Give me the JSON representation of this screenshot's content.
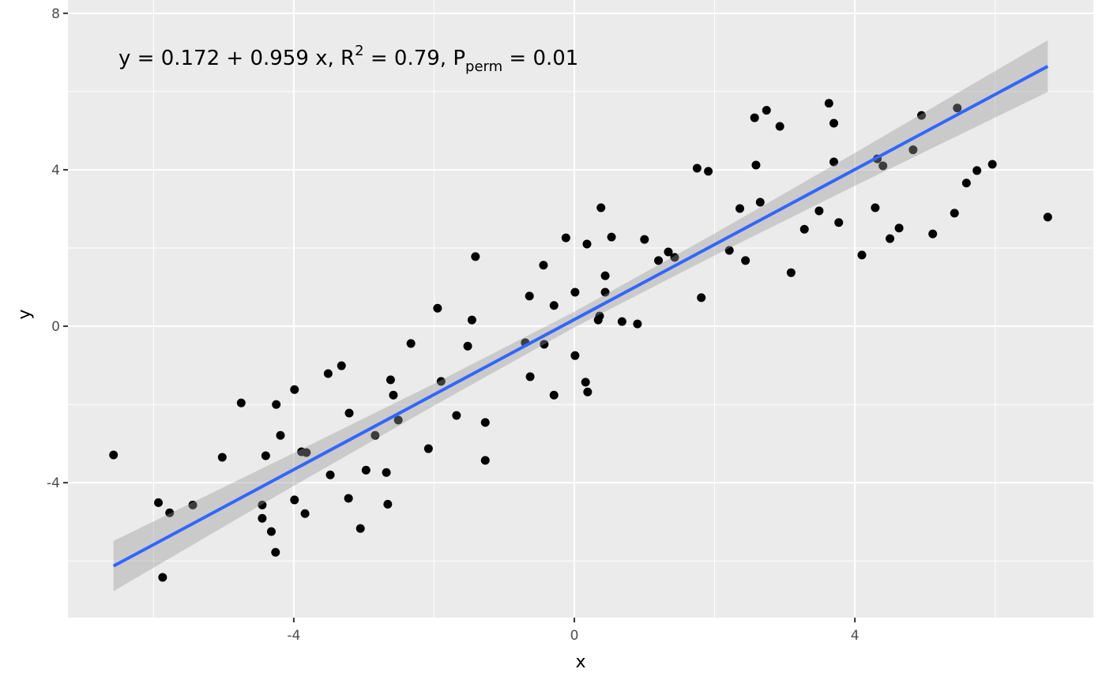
{
  "chart_data": {
    "type": "scatter",
    "xlabel": "x",
    "ylabel": "y",
    "annotation": [
      "y = 0.172 + 0.959 x, R",
      "2",
      " = 0.79, P",
      "perm",
      " = 0.01"
    ],
    "xlim": [
      -7.22,
      7.4
    ],
    "ylim": [
      -7.45,
      8.34
    ],
    "xticks": [
      -4,
      0,
      4
    ],
    "yticks": [
      -4,
      0,
      4,
      8
    ],
    "xminor": [
      -6,
      -2,
      2,
      6
    ],
    "yminor": [
      -6,
      -2,
      2,
      6
    ],
    "grid": true,
    "point_color": "#000000",
    "line_color": "#3366ff",
    "band_color": "#999999",
    "x": [
      -6.57,
      -5.93,
      -5.87,
      -5.77,
      -5.44,
      -5.02,
      -4.75,
      -4.45,
      -4.45,
      -4.4,
      -4.32,
      -4.26,
      -4.25,
      -4.19,
      -3.99,
      -3.99,
      -3.89,
      -3.82,
      -3.84,
      -3.51,
      -3.48,
      -3.32,
      -3.22,
      -3.21,
      -3.05,
      -2.97,
      -2.84,
      -2.68,
      -2.66,
      -2.62,
      -2.58,
      -2.51,
      -2.33,
      -2.08,
      -1.95,
      -1.9,
      -1.68,
      -1.52,
      -1.46,
      -1.41,
      -1.27,
      -1.27,
      -0.7,
      -0.64,
      -0.63,
      -0.44,
      -0.43,
      -0.29,
      -0.29,
      -0.12,
      0.01,
      0.01,
      0.16,
      0.18,
      0.19,
      0.34,
      0.36,
      0.38,
      0.44,
      0.44,
      0.53,
      0.68,
      0.9,
      1.0,
      1.2,
      1.34,
      1.43,
      1.75,
      1.81,
      1.91,
      2.21,
      2.36,
      2.44,
      2.57,
      2.59,
      2.65,
      2.74,
      2.93,
      3.09,
      3.28,
      3.49,
      3.63,
      3.7,
      3.7,
      3.77,
      4.1,
      4.29,
      4.32,
      4.4,
      4.5,
      4.63,
      4.83,
      4.95,
      5.11,
      5.42,
      5.46,
      5.59,
      5.74,
      5.96,
      6.75
    ],
    "y": [
      -3.29,
      -4.51,
      -6.42,
      -4.77,
      -4.57,
      -3.35,
      -1.96,
      -4.57,
      -4.91,
      -3.31,
      -5.25,
      -5.78,
      -2.0,
      -2.79,
      -1.62,
      -4.44,
      -3.21,
      -3.23,
      -4.79,
      -1.21,
      -3.8,
      -1.01,
      -4.4,
      -2.22,
      -5.17,
      -3.68,
      -2.79,
      -3.74,
      -4.55,
      -1.37,
      -1.76,
      -2.4,
      -0.44,
      -3.13,
      0.46,
      -1.41,
      -2.28,
      -0.51,
      0.16,
      1.78,
      -2.46,
      -3.43,
      -0.42,
      0.77,
      -1.29,
      1.56,
      -0.46,
      0.53,
      -1.76,
      2.26,
      0.87,
      -0.75,
      -1.43,
      2.1,
      -1.68,
      0.16,
      0.26,
      3.03,
      1.29,
      0.87,
      2.28,
      0.12,
      0.06,
      2.22,
      1.68,
      1.9,
      1.76,
      4.04,
      0.73,
      3.96,
      1.94,
      3.01,
      1.68,
      5.33,
      4.12,
      3.17,
      5.52,
      5.11,
      1.37,
      2.48,
      2.95,
      5.7,
      5.19,
      4.2,
      2.65,
      1.82,
      3.03,
      4.28,
      4.1,
      2.24,
      2.51,
      4.51,
      5.39,
      2.36,
      2.89,
      5.58,
      3.66,
      3.98,
      4.14,
      2.79
    ],
    "fit": {
      "x": [
        -6.57,
        6.75
      ],
      "y": [
        -6.13,
        6.645
      ]
    },
    "band": {
      "x": [
        -6.57,
        -4,
        -2,
        0,
        2,
        4,
        6.75
      ],
      "lower": [
        -6.77,
        -4.08,
        -2.03,
        -0.03,
        1.81,
        3.59,
        5.99
      ],
      "upper": [
        -5.49,
        -3.24,
        -1.47,
        0.37,
        2.37,
        4.43,
        7.31
      ]
    }
  }
}
